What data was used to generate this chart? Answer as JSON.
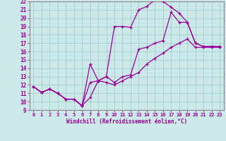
{
  "xlabel": "Windchill (Refroidissement éolien,°C)",
  "bg_color": "#cce8e8",
  "line_color": "#990099",
  "grid_color": "#99cccc",
  "xlim": [
    -0.5,
    23.5
  ],
  "ylim": [
    9,
    22
  ],
  "xticks": [
    0,
    1,
    2,
    3,
    4,
    5,
    6,
    7,
    8,
    9,
    10,
    11,
    12,
    13,
    14,
    15,
    16,
    17,
    18,
    19,
    20,
    21,
    22,
    23
  ],
  "yticks": [
    9,
    10,
    11,
    12,
    13,
    14,
    15,
    16,
    17,
    18,
    19,
    20,
    21,
    22
  ],
  "lines": [
    {
      "x": [
        0,
        1,
        2,
        3,
        4,
        5,
        6,
        7,
        8,
        9,
        10,
        11,
        12,
        13,
        14,
        15,
        16,
        17,
        18,
        19,
        20,
        21,
        22,
        23
      ],
      "y": [
        11.8,
        11.1,
        11.5,
        11.0,
        10.3,
        10.3,
        9.5,
        12.3,
        12.5,
        13.0,
        19.0,
        19.0,
        18.9,
        21.0,
        21.4,
        22.2,
        22.0,
        21.3,
        20.6,
        19.5,
        17.0,
        16.6,
        16.6,
        16.6
      ]
    },
    {
      "x": [
        0,
        1,
        2,
        3,
        4,
        5,
        6,
        7,
        8,
        9,
        10,
        11,
        12,
        13,
        14,
        15,
        16,
        17,
        18,
        19,
        20,
        21,
        22,
        23
      ],
      "y": [
        11.8,
        11.1,
        11.5,
        11.0,
        10.3,
        10.3,
        9.5,
        14.5,
        12.5,
        13.0,
        12.3,
        13.0,
        13.2,
        16.3,
        16.5,
        17.0,
        17.3,
        20.7,
        19.5,
        19.5,
        17.0,
        16.6,
        16.6,
        16.6
      ]
    },
    {
      "x": [
        0,
        1,
        2,
        3,
        4,
        5,
        6,
        7,
        8,
        9,
        10,
        11,
        12,
        13,
        14,
        15,
        16,
        17,
        18,
        19,
        20,
        21,
        22,
        23
      ],
      "y": [
        11.8,
        11.1,
        11.5,
        11.0,
        10.3,
        10.3,
        9.5,
        10.5,
        12.5,
        12.3,
        12.0,
        12.5,
        13.0,
        13.5,
        14.5,
        15.2,
        15.8,
        16.5,
        17.0,
        17.5,
        16.5,
        16.5,
        16.5,
        16.5
      ]
    }
  ]
}
